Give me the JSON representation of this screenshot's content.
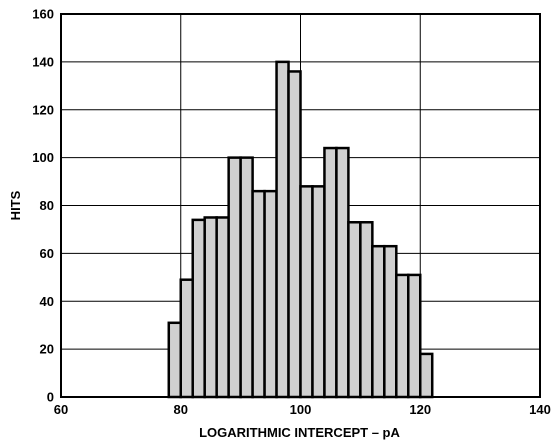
{
  "chart_data": {
    "type": "bar",
    "title": "",
    "xlabel": "LOGARITHMIC INTERCEPT – pA",
    "ylabel": "HITS",
    "xlim": [
      60,
      140
    ],
    "ylim": [
      0,
      160
    ],
    "x_ticks": [
      60,
      80,
      100,
      120,
      140
    ],
    "y_ticks": [
      0,
      20,
      40,
      60,
      80,
      100,
      120,
      140,
      160
    ],
    "grid": true,
    "legend": "none",
    "bar_fill_color": "#d0d0d0",
    "bar_edge_color": "#000000",
    "bins": [
      {
        "x_start": 78,
        "x_end": 80,
        "value": 31
      },
      {
        "x_start": 80,
        "x_end": 82,
        "value": 49
      },
      {
        "x_start": 82,
        "x_end": 84,
        "value": 74
      },
      {
        "x_start": 84,
        "x_end": 86,
        "value": 75
      },
      {
        "x_start": 86,
        "x_end": 88,
        "value": 75
      },
      {
        "x_start": 88,
        "x_end": 90,
        "value": 100
      },
      {
        "x_start": 90,
        "x_end": 92,
        "value": 100
      },
      {
        "x_start": 92,
        "x_end": 94,
        "value": 86
      },
      {
        "x_start": 94,
        "x_end": 96,
        "value": 86
      },
      {
        "x_start": 96,
        "x_end": 98,
        "value": 140
      },
      {
        "x_start": 98,
        "x_end": 100,
        "value": 136
      },
      {
        "x_start": 100,
        "x_end": 102,
        "value": 88
      },
      {
        "x_start": 102,
        "x_end": 104,
        "value": 88
      },
      {
        "x_start": 104,
        "x_end": 106,
        "value": 104
      },
      {
        "x_start": 106,
        "x_end": 108,
        "value": 104
      },
      {
        "x_start": 108,
        "x_end": 110,
        "value": 73
      },
      {
        "x_start": 110,
        "x_end": 112,
        "value": 73
      },
      {
        "x_start": 112,
        "x_end": 114,
        "value": 63
      },
      {
        "x_start": 114,
        "x_end": 116,
        "value": 63
      },
      {
        "x_start": 116,
        "x_end": 118,
        "value": 51
      },
      {
        "x_start": 118,
        "x_end": 120,
        "value": 51
      },
      {
        "x_start": 120,
        "x_end": 122,
        "value": 18
      }
    ]
  }
}
